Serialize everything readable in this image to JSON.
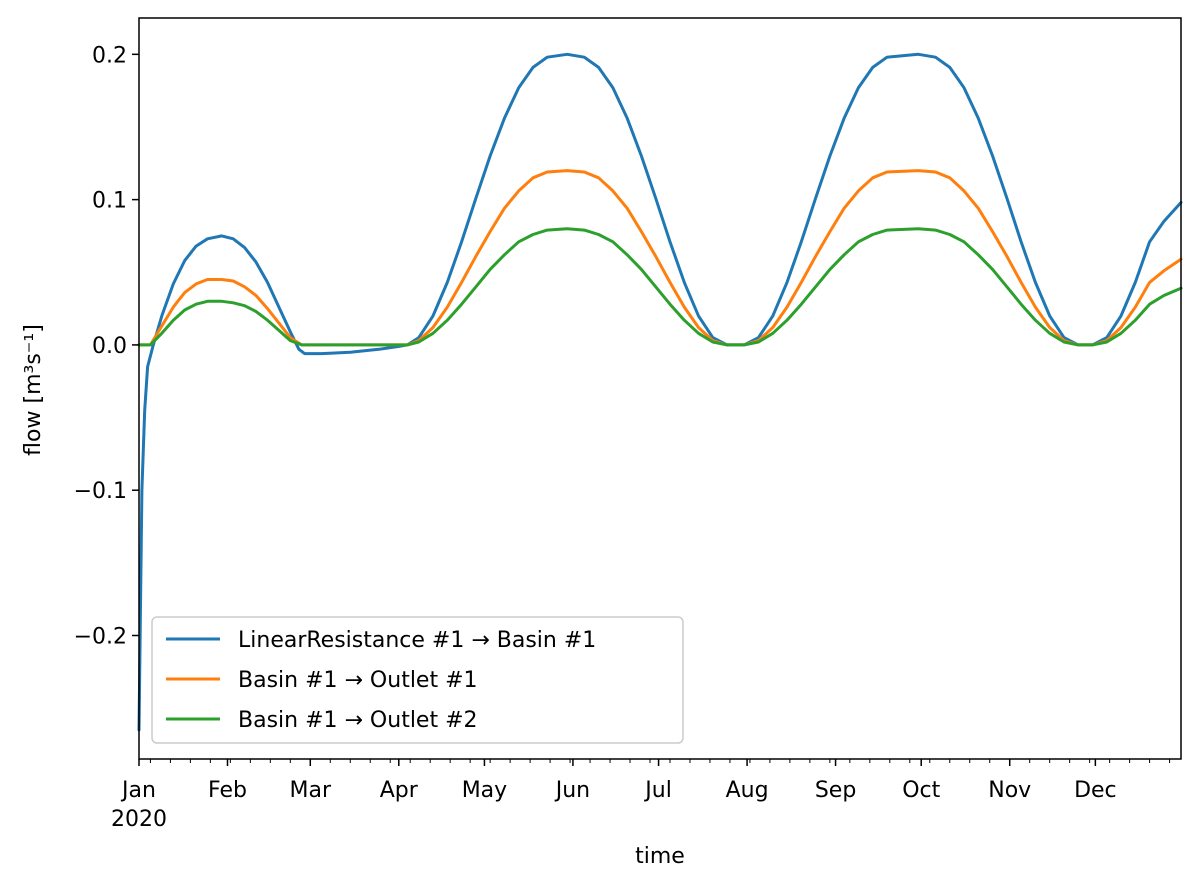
{
  "chart_data": {
    "type": "line",
    "title": "",
    "xlabel": "time",
    "ylabel": "flow [m³s⁻¹]",
    "xlim": [
      "2020-01-01",
      "2020-12-31"
    ],
    "ylim": [
      -0.285,
      0.225
    ],
    "x_ticks": [
      {
        "date": "2020-01-01",
        "label": "Jan",
        "sublabel": "2020"
      },
      {
        "date": "2020-02-01",
        "label": "Feb"
      },
      {
        "date": "2020-03-01",
        "label": "Mar"
      },
      {
        "date": "2020-04-01",
        "label": "Apr"
      },
      {
        "date": "2020-05-01",
        "label": "May"
      },
      {
        "date": "2020-06-01",
        "label": "Jun"
      },
      {
        "date": "2020-07-01",
        "label": "Jul"
      },
      {
        "date": "2020-08-01",
        "label": "Aug"
      },
      {
        "date": "2020-09-01",
        "label": "Sep"
      },
      {
        "date": "2020-10-01",
        "label": "Oct"
      },
      {
        "date": "2020-11-01",
        "label": "Nov"
      },
      {
        "date": "2020-12-01",
        "label": "Dec"
      }
    ],
    "y_ticks": [
      {
        "value": 0.2,
        "label": "0.2"
      },
      {
        "value": 0.1,
        "label": "0.1"
      },
      {
        "value": 0.0,
        "label": "0.0"
      },
      {
        "value": -0.1,
        "label": "−0.1"
      },
      {
        "value": -0.2,
        "label": "−0.2"
      }
    ],
    "legend_position": "lower-left",
    "grid": false,
    "series": [
      {
        "name": "LinearResistance #1 → Basin #1",
        "color": "#1f77b4",
        "points": [
          [
            "2020-01-01",
            -0.265
          ],
          [
            "2020-01-02",
            -0.1
          ],
          [
            "2020-01-03",
            -0.045
          ],
          [
            "2020-01-04",
            -0.015
          ],
          [
            "2020-01-06",
            0.0
          ],
          [
            "2020-01-09",
            0.02
          ],
          [
            "2020-01-13",
            0.042
          ],
          [
            "2020-01-17",
            0.058
          ],
          [
            "2020-01-21",
            0.068
          ],
          [
            "2020-01-25",
            0.073
          ],
          [
            "2020-01-30",
            0.075
          ],
          [
            "2020-02-03",
            0.073
          ],
          [
            "2020-02-07",
            0.067
          ],
          [
            "2020-02-11",
            0.057
          ],
          [
            "2020-02-15",
            0.043
          ],
          [
            "2020-02-19",
            0.026
          ],
          [
            "2020-02-23",
            0.009
          ],
          [
            "2020-02-26",
            -0.003
          ],
          [
            "2020-02-28",
            -0.006
          ],
          [
            "2020-03-05",
            -0.006
          ],
          [
            "2020-03-15",
            -0.005
          ],
          [
            "2020-03-25",
            -0.003
          ],
          [
            "2020-04-01",
            -0.001
          ],
          [
            "2020-04-04",
            0.0
          ],
          [
            "2020-04-08",
            0.005
          ],
          [
            "2020-04-13",
            0.02
          ],
          [
            "2020-04-18",
            0.043
          ],
          [
            "2020-04-23",
            0.071
          ],
          [
            "2020-04-28",
            0.101
          ],
          [
            "2020-05-03",
            0.13
          ],
          [
            "2020-05-08",
            0.156
          ],
          [
            "2020-05-13",
            0.177
          ],
          [
            "2020-05-18",
            0.191
          ],
          [
            "2020-05-23",
            0.198
          ],
          [
            "2020-05-30",
            0.2
          ],
          [
            "2020-06-05",
            0.198
          ],
          [
            "2020-06-10",
            0.191
          ],
          [
            "2020-06-15",
            0.177
          ],
          [
            "2020-06-20",
            0.156
          ],
          [
            "2020-06-25",
            0.13
          ],
          [
            "2020-06-30",
            0.101
          ],
          [
            "2020-07-05",
            0.071
          ],
          [
            "2020-07-10",
            0.043
          ],
          [
            "2020-07-15",
            0.02
          ],
          [
            "2020-07-20",
            0.005
          ],
          [
            "2020-07-25",
            0.0
          ],
          [
            "2020-07-31",
            0.0
          ],
          [
            "2020-08-05",
            0.005
          ],
          [
            "2020-08-10",
            0.02
          ],
          [
            "2020-08-15",
            0.043
          ],
          [
            "2020-08-20",
            0.071
          ],
          [
            "2020-08-25",
            0.101
          ],
          [
            "2020-08-30",
            0.13
          ],
          [
            "2020-09-04",
            0.156
          ],
          [
            "2020-09-09",
            0.177
          ],
          [
            "2020-09-14",
            0.191
          ],
          [
            "2020-09-19",
            0.198
          ],
          [
            "2020-09-30",
            0.2
          ],
          [
            "2020-10-06",
            0.198
          ],
          [
            "2020-10-11",
            0.191
          ],
          [
            "2020-10-16",
            0.177
          ],
          [
            "2020-10-21",
            0.156
          ],
          [
            "2020-10-26",
            0.13
          ],
          [
            "2020-10-31",
            0.101
          ],
          [
            "2020-11-05",
            0.071
          ],
          [
            "2020-11-10",
            0.043
          ],
          [
            "2020-11-15",
            0.02
          ],
          [
            "2020-11-20",
            0.005
          ],
          [
            "2020-11-25",
            0.0
          ],
          [
            "2020-11-30",
            0.0
          ],
          [
            "2020-12-05",
            0.005
          ],
          [
            "2020-12-10",
            0.02
          ],
          [
            "2020-12-15",
            0.043
          ],
          [
            "2020-12-20",
            0.071
          ],
          [
            "2020-12-25",
            0.085
          ],
          [
            "2020-12-31",
            0.098
          ]
        ]
      },
      {
        "name": "Basin #1 → Outlet #1",
        "color": "#ff7f0e",
        "points": [
          [
            "2020-01-01",
            0.0
          ],
          [
            "2020-01-05",
            0.0
          ],
          [
            "2020-01-09",
            0.013
          ],
          [
            "2020-01-13",
            0.026
          ],
          [
            "2020-01-17",
            0.036
          ],
          [
            "2020-01-21",
            0.042
          ],
          [
            "2020-01-25",
            0.045
          ],
          [
            "2020-01-30",
            0.045
          ],
          [
            "2020-02-03",
            0.044
          ],
          [
            "2020-02-07",
            0.04
          ],
          [
            "2020-02-11",
            0.034
          ],
          [
            "2020-02-15",
            0.025
          ],
          [
            "2020-02-19",
            0.015
          ],
          [
            "2020-02-23",
            0.005
          ],
          [
            "2020-02-27",
            0.0
          ],
          [
            "2020-04-04",
            0.0
          ],
          [
            "2020-04-08",
            0.003
          ],
          [
            "2020-04-13",
            0.012
          ],
          [
            "2020-04-18",
            0.026
          ],
          [
            "2020-04-23",
            0.043
          ],
          [
            "2020-04-28",
            0.061
          ],
          [
            "2020-05-03",
            0.078
          ],
          [
            "2020-05-08",
            0.094
          ],
          [
            "2020-05-13",
            0.106
          ],
          [
            "2020-05-18",
            0.115
          ],
          [
            "2020-05-23",
            0.119
          ],
          [
            "2020-05-30",
            0.12
          ],
          [
            "2020-06-05",
            0.119
          ],
          [
            "2020-06-10",
            0.115
          ],
          [
            "2020-06-15",
            0.106
          ],
          [
            "2020-06-20",
            0.094
          ],
          [
            "2020-06-25",
            0.078
          ],
          [
            "2020-06-30",
            0.061
          ],
          [
            "2020-07-05",
            0.043
          ],
          [
            "2020-07-10",
            0.026
          ],
          [
            "2020-07-15",
            0.012
          ],
          [
            "2020-07-20",
            0.003
          ],
          [
            "2020-07-25",
            0.0
          ],
          [
            "2020-07-31",
            0.0
          ],
          [
            "2020-08-05",
            0.003
          ],
          [
            "2020-08-10",
            0.012
          ],
          [
            "2020-08-15",
            0.026
          ],
          [
            "2020-08-20",
            0.043
          ],
          [
            "2020-08-25",
            0.061
          ],
          [
            "2020-08-30",
            0.078
          ],
          [
            "2020-09-04",
            0.094
          ],
          [
            "2020-09-09",
            0.106
          ],
          [
            "2020-09-14",
            0.115
          ],
          [
            "2020-09-19",
            0.119
          ],
          [
            "2020-09-30",
            0.12
          ],
          [
            "2020-10-06",
            0.119
          ],
          [
            "2020-10-11",
            0.115
          ],
          [
            "2020-10-16",
            0.106
          ],
          [
            "2020-10-21",
            0.094
          ],
          [
            "2020-10-26",
            0.078
          ],
          [
            "2020-10-31",
            0.061
          ],
          [
            "2020-11-05",
            0.043
          ],
          [
            "2020-11-10",
            0.026
          ],
          [
            "2020-11-15",
            0.012
          ],
          [
            "2020-11-20",
            0.003
          ],
          [
            "2020-11-25",
            0.0
          ],
          [
            "2020-11-30",
            0.0
          ],
          [
            "2020-12-05",
            0.003
          ],
          [
            "2020-12-10",
            0.012
          ],
          [
            "2020-12-15",
            0.026
          ],
          [
            "2020-12-20",
            0.043
          ],
          [
            "2020-12-25",
            0.051
          ],
          [
            "2020-12-31",
            0.059
          ]
        ]
      },
      {
        "name": "Basin #1 → Outlet #2",
        "color": "#2ca02c",
        "points": [
          [
            "2020-01-01",
            0.0
          ],
          [
            "2020-01-05",
            0.0
          ],
          [
            "2020-01-09",
            0.008
          ],
          [
            "2020-01-13",
            0.017
          ],
          [
            "2020-01-17",
            0.024
          ],
          [
            "2020-01-21",
            0.028
          ],
          [
            "2020-01-25",
            0.03
          ],
          [
            "2020-01-30",
            0.03
          ],
          [
            "2020-02-03",
            0.029
          ],
          [
            "2020-02-07",
            0.027
          ],
          [
            "2020-02-11",
            0.023
          ],
          [
            "2020-02-15",
            0.017
          ],
          [
            "2020-02-19",
            0.01
          ],
          [
            "2020-02-23",
            0.003
          ],
          [
            "2020-02-27",
            0.0
          ],
          [
            "2020-04-04",
            0.0
          ],
          [
            "2020-04-08",
            0.002
          ],
          [
            "2020-04-13",
            0.008
          ],
          [
            "2020-04-18",
            0.017
          ],
          [
            "2020-04-23",
            0.028
          ],
          [
            "2020-04-28",
            0.04
          ],
          [
            "2020-05-03",
            0.052
          ],
          [
            "2020-05-08",
            0.062
          ],
          [
            "2020-05-13",
            0.071
          ],
          [
            "2020-05-18",
            0.076
          ],
          [
            "2020-05-23",
            0.079
          ],
          [
            "2020-05-30",
            0.08
          ],
          [
            "2020-06-05",
            0.079
          ],
          [
            "2020-06-10",
            0.076
          ],
          [
            "2020-06-15",
            0.071
          ],
          [
            "2020-06-20",
            0.062
          ],
          [
            "2020-06-25",
            0.052
          ],
          [
            "2020-06-30",
            0.04
          ],
          [
            "2020-07-05",
            0.028
          ],
          [
            "2020-07-10",
            0.017
          ],
          [
            "2020-07-15",
            0.008
          ],
          [
            "2020-07-20",
            0.002
          ],
          [
            "2020-07-25",
            0.0
          ],
          [
            "2020-07-31",
            0.0
          ],
          [
            "2020-08-05",
            0.002
          ],
          [
            "2020-08-10",
            0.008
          ],
          [
            "2020-08-15",
            0.017
          ],
          [
            "2020-08-20",
            0.028
          ],
          [
            "2020-08-25",
            0.04
          ],
          [
            "2020-08-30",
            0.052
          ],
          [
            "2020-09-04",
            0.062
          ],
          [
            "2020-09-09",
            0.071
          ],
          [
            "2020-09-14",
            0.076
          ],
          [
            "2020-09-19",
            0.079
          ],
          [
            "2020-09-30",
            0.08
          ],
          [
            "2020-10-06",
            0.079
          ],
          [
            "2020-10-11",
            0.076
          ],
          [
            "2020-10-16",
            0.071
          ],
          [
            "2020-10-21",
            0.062
          ],
          [
            "2020-10-26",
            0.052
          ],
          [
            "2020-10-31",
            0.04
          ],
          [
            "2020-11-05",
            0.028
          ],
          [
            "2020-11-10",
            0.017
          ],
          [
            "2020-11-15",
            0.008
          ],
          [
            "2020-11-20",
            0.002
          ],
          [
            "2020-11-25",
            0.0
          ],
          [
            "2020-11-30",
            0.0
          ],
          [
            "2020-12-05",
            0.002
          ],
          [
            "2020-12-10",
            0.008
          ],
          [
            "2020-12-15",
            0.017
          ],
          [
            "2020-12-20",
            0.028
          ],
          [
            "2020-12-25",
            0.034
          ],
          [
            "2020-12-31",
            0.039
          ]
        ]
      }
    ]
  }
}
